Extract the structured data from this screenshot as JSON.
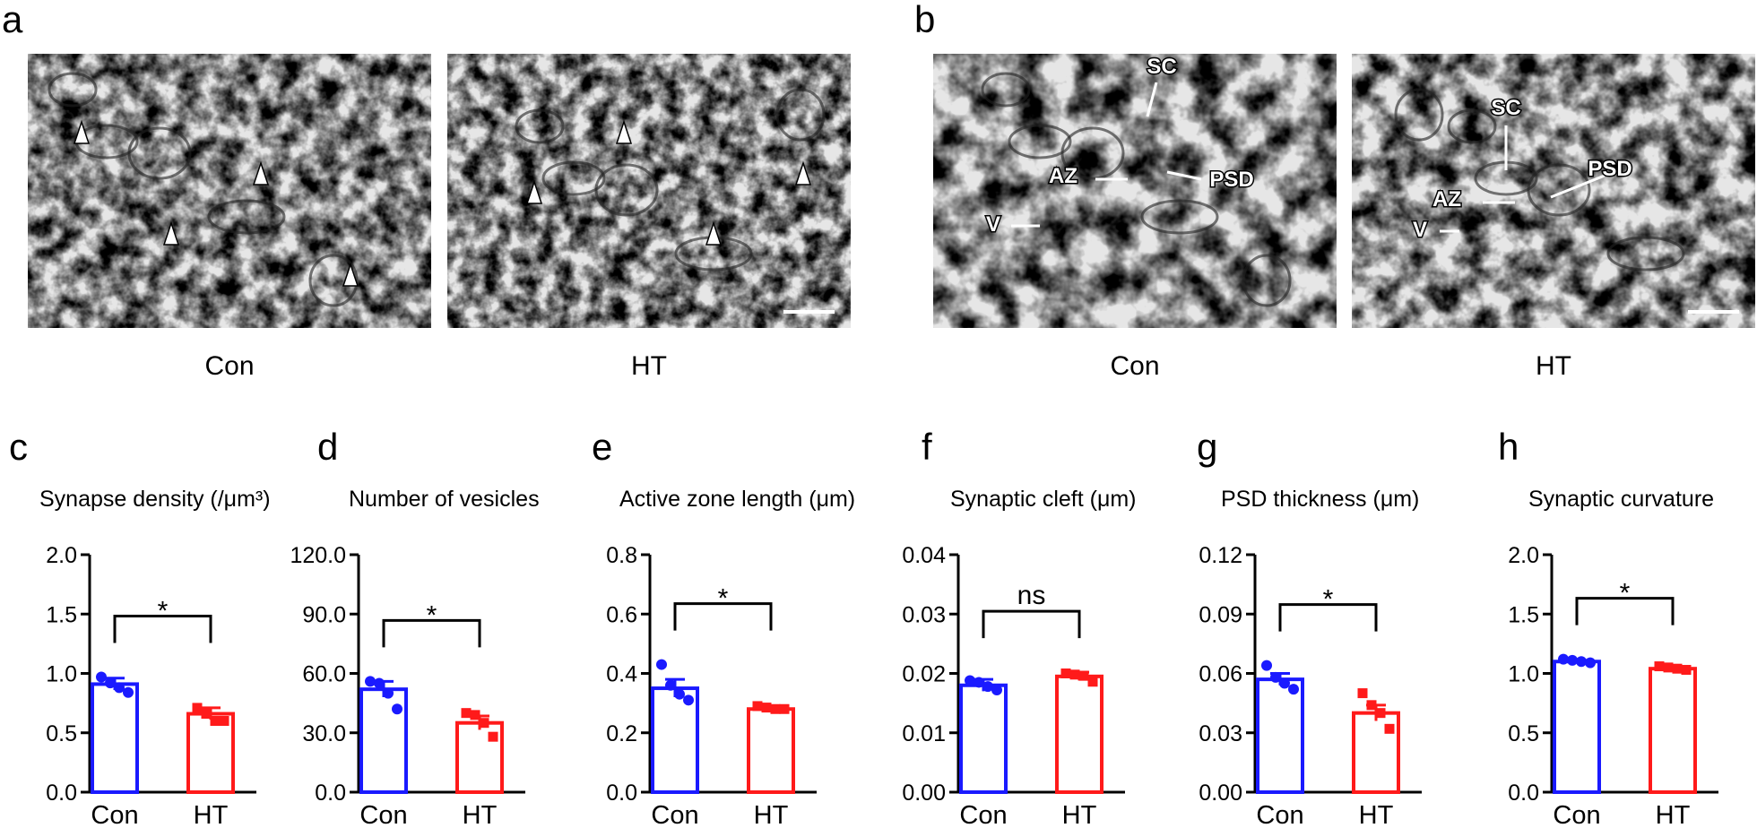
{
  "figure": {
    "panels": [
      {
        "label": "a",
        "images": [
          {
            "caption": "Con"
          },
          {
            "caption": "HT"
          }
        ]
      },
      {
        "label": "b",
        "images": [
          {
            "caption": "Con",
            "annotations": [
              "SC",
              "AZ",
              "PSD",
              "V"
            ]
          },
          {
            "caption": "HT",
            "annotations": [
              "SC",
              "AZ",
              "PSD",
              "V"
            ]
          }
        ]
      }
    ]
  },
  "chart_data": [
    {
      "type": "bar",
      "panel": "c",
      "title": "Synapse density (/μm³)",
      "categories": [
        "Con",
        "HT"
      ],
      "values": [
        0.91,
        0.66
      ],
      "errors": [
        0.05,
        0.05
      ],
      "points": [
        [
          0.97,
          0.92,
          0.88,
          0.84
        ],
        [
          0.71,
          0.66,
          0.6,
          0.6
        ]
      ],
      "colors": [
        "#1a1aff",
        "#ff1a1a"
      ],
      "markers": [
        "circle",
        "square"
      ],
      "significance": "*",
      "ylim": [
        0,
        2
      ],
      "yticks": [
        {
          "value": 0,
          "label": "0.0"
        },
        0.5,
        {
          "value": 1,
          "label": "1.0"
        },
        1.5,
        {
          "value": 2,
          "label": "2.0"
        }
      ]
    },
    {
      "type": "bar",
      "panel": "d",
      "title": "Number of vesicles",
      "categories": [
        "Con",
        "HT"
      ],
      "values": [
        52,
        35
      ],
      "errors": [
        4,
        3.5
      ],
      "points": [
        [
          56,
          55,
          50,
          42
        ],
        [
          40,
          39,
          35,
          28
        ]
      ],
      "colors": [
        "#1a1aff",
        "#ff1a1a"
      ],
      "markers": [
        "circle",
        "square"
      ],
      "significance": "*",
      "ylim": [
        0,
        120
      ],
      "yticks": [
        {
          "value": 0,
          "label": "0.0"
        },
        {
          "value": 30,
          "label": "30.0"
        },
        {
          "value": 60,
          "label": "60.0"
        },
        {
          "value": 90,
          "label": "90.0"
        },
        {
          "value": 120,
          "label": "120.0"
        }
      ]
    },
    {
      "type": "bar",
      "panel": "e",
      "title": "Active zone length (μm)",
      "categories": [
        "Con",
        "HT"
      ],
      "values": [
        0.35,
        0.28
      ],
      "errors": [
        0.03,
        0.01
      ],
      "points": [
        [
          0.43,
          0.36,
          0.33,
          0.31
        ],
        [
          0.29,
          0.285,
          0.28,
          0.28
        ]
      ],
      "colors": [
        "#1a1aff",
        "#ff1a1a"
      ],
      "markers": [
        "circle",
        "square"
      ],
      "significance": "*",
      "ylim": [
        0,
        0.8
      ],
      "yticks": [
        {
          "value": 0,
          "label": "0.0"
        },
        0.2,
        0.4,
        0.6,
        0.8
      ]
    },
    {
      "type": "bar",
      "panel": "f",
      "title": "Synaptic cleft (μm)",
      "categories": [
        "Con",
        "HT"
      ],
      "values": [
        0.018,
        0.0195
      ],
      "errors": [
        0.001,
        0.0007
      ],
      "points": [
        [
          0.0188,
          0.0185,
          0.0178,
          0.0172
        ],
        [
          0.02,
          0.0198,
          0.0196,
          0.0186
        ]
      ],
      "colors": [
        "#1a1aff",
        "#ff1a1a"
      ],
      "markers": [
        "circle",
        "square"
      ],
      "significance": "ns",
      "ylim": [
        0,
        0.04
      ],
      "yticks": [
        {
          "value": 0,
          "label": "0.00"
        },
        0.01,
        {
          "value": 0.02,
          "label": "0.02"
        },
        0.03,
        0.04
      ]
    },
    {
      "type": "bar",
      "panel": "g",
      "title": "PSD thickness (μm)",
      "categories": [
        "Con",
        "HT"
      ],
      "values": [
        0.057,
        0.04
      ],
      "errors": [
        0.003,
        0.004
      ],
      "points": [
        [
          0.064,
          0.058,
          0.055,
          0.052
        ],
        [
          0.05,
          0.044,
          0.04,
          0.032
        ]
      ],
      "colors": [
        "#1a1aff",
        "#ff1a1a"
      ],
      "markers": [
        "circle",
        "square"
      ],
      "significance": "*",
      "ylim": [
        0,
        0.12
      ],
      "yticks": [
        {
          "value": 0,
          "label": "0.00"
        },
        0.03,
        0.06,
        0.09,
        0.12
      ]
    },
    {
      "type": "bar",
      "panel": "h",
      "title": "Synaptic curvature",
      "categories": [
        "Con",
        "HT"
      ],
      "values": [
        1.1,
        1.04
      ],
      "errors": [
        0.01,
        0.01
      ],
      "points": [
        [
          1.12,
          1.11,
          1.1,
          1.09
        ],
        [
          1.06,
          1.05,
          1.04,
          1.03
        ]
      ],
      "colors": [
        "#1a1aff",
        "#ff1a1a"
      ],
      "markers": [
        "circle",
        "square"
      ],
      "significance": "*",
      "ylim": [
        0,
        2
      ],
      "yticks": [
        {
          "value": 0,
          "label": "0.0"
        },
        0.5,
        {
          "value": 1,
          "label": "1.0"
        },
        1.5,
        {
          "value": 2,
          "label": "2.0"
        }
      ]
    }
  ]
}
